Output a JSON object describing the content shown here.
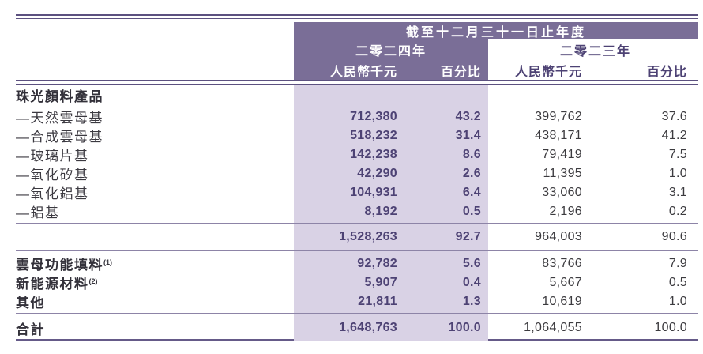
{
  "header": {
    "period_title": "截至十二月三十一日止年度",
    "y2024": {
      "year": "二零二四年",
      "currency": "人民幣千元",
      "percent": "百分比"
    },
    "y2023": {
      "year": "二零二三年",
      "currency": "人民幣千元",
      "percent": "百分比"
    }
  },
  "colors": {
    "header_band": "#7a6e97",
    "highlight_column": "#d9d2e5",
    "rule_dark": "#5c5180",
    "rule_light": "#8d84a7",
    "accent_text": "#4d4274"
  },
  "rows": [
    {
      "label": "珠光顏料產品",
      "type": "section"
    },
    {
      "label": "—天然雲母基",
      "amount_2024": "712,380",
      "pct_2024": "43.2",
      "amount_2023": "399,762",
      "pct_2023": "37.6"
    },
    {
      "label": "—合成雲母基",
      "amount_2024": "518,232",
      "pct_2024": "31.4",
      "amount_2023": "438,171",
      "pct_2023": "41.2"
    },
    {
      "label": "—玻璃片基",
      "amount_2024": "142,238",
      "pct_2024": "8.6",
      "amount_2023": "79,419",
      "pct_2023": "7.5"
    },
    {
      "label": "—氧化矽基",
      "amount_2024": "42,290",
      "pct_2024": "2.6",
      "amount_2023": "11,395",
      "pct_2023": "1.0"
    },
    {
      "label": "—氧化鋁基",
      "amount_2024": "104,931",
      "pct_2024": "6.4",
      "amount_2023": "33,060",
      "pct_2023": "3.1"
    },
    {
      "label": "—鋁基",
      "amount_2024": "8,192",
      "pct_2024": "0.5",
      "amount_2023": "2,196",
      "pct_2023": "0.2"
    },
    {
      "label": "",
      "type": "subtotal",
      "amount_2024": "1,528,263",
      "pct_2024": "92.7",
      "amount_2023": "964,003",
      "pct_2023": "90.6"
    },
    {
      "label": "雲母功能填料",
      "sup": "(1)",
      "amount_2024": "92,782",
      "pct_2024": "5.6",
      "amount_2023": "83,766",
      "pct_2023": "7.9"
    },
    {
      "label": "新能源材料",
      "sup": "(2)",
      "amount_2024": "5,907",
      "pct_2024": "0.4",
      "amount_2023": "5,667",
      "pct_2023": "0.5"
    },
    {
      "label": "其他",
      "amount_2024": "21,811",
      "pct_2024": "1.3",
      "amount_2023": "10,619",
      "pct_2023": "1.0"
    },
    {
      "label": "合計",
      "type": "total",
      "amount_2024": "1,648,763",
      "pct_2024": "100.0",
      "amount_2023": "1,064,055",
      "pct_2023": "100.0"
    }
  ]
}
